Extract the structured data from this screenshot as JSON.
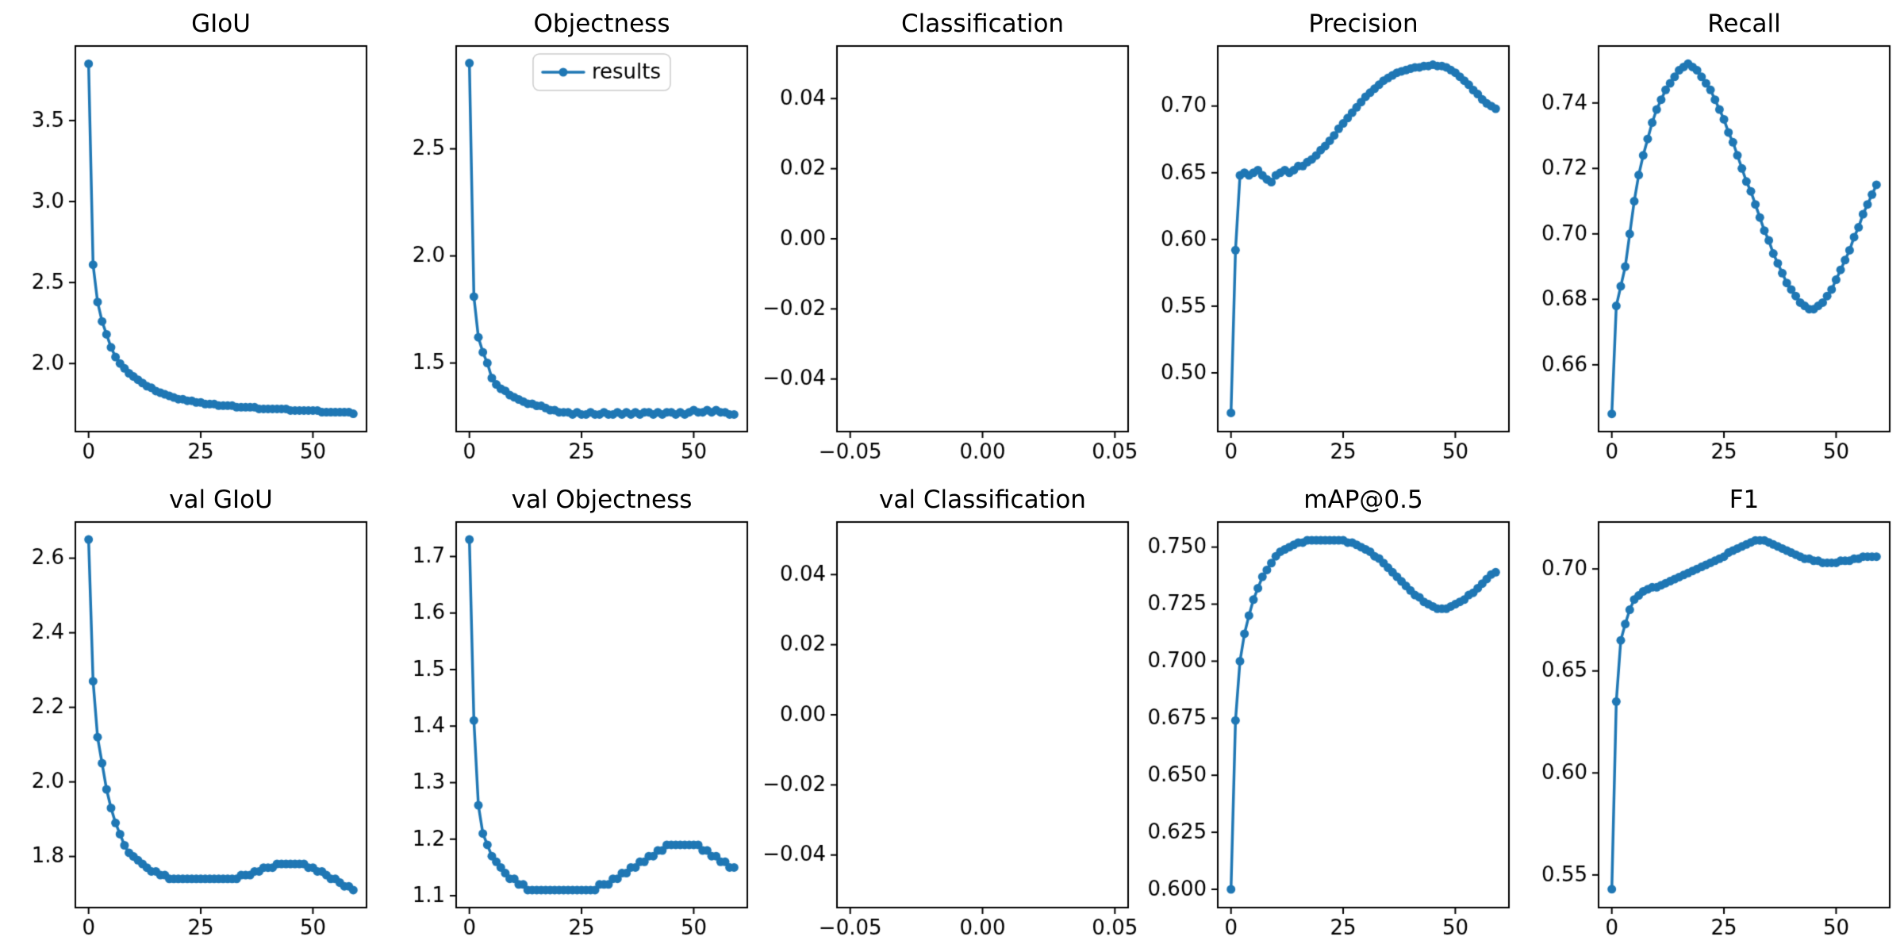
{
  "figure": {
    "background": "#ffffff",
    "accent_color": "#1f77b4",
    "axes_color": "#000000",
    "grid": false,
    "layout": "2 rows x 5 columns of subplots"
  },
  "chart_data": [
    {
      "id": "giou",
      "type": "line",
      "title": "GIoU",
      "xlim": [
        -2.95,
        61.95
      ],
      "ylim": [
        1.58,
        3.96
      ],
      "xticks": [
        0,
        25,
        50
      ],
      "xtick_labels": [
        "0",
        "25",
        "50"
      ],
      "yticks": [
        2.0,
        2.5,
        3.0,
        3.5
      ],
      "ytick_labels": [
        "2.0",
        "2.5",
        "3.0",
        "3.5"
      ],
      "x": [
        0,
        1,
        2,
        3,
        4,
        5,
        6,
        7,
        8,
        9,
        10,
        11,
        12,
        13,
        14,
        15,
        16,
        17,
        18,
        19,
        20,
        21,
        22,
        23,
        24,
        25,
        26,
        27,
        28,
        29,
        30,
        31,
        32,
        33,
        34,
        35,
        36,
        37,
        38,
        39,
        40,
        41,
        42,
        43,
        44,
        45,
        46,
        47,
        48,
        49,
        50,
        51,
        52,
        53,
        54,
        55,
        56,
        57,
        58,
        59
      ],
      "values": [
        3.85,
        2.61,
        2.38,
        2.26,
        2.18,
        2.1,
        2.04,
        2.0,
        1.97,
        1.94,
        1.92,
        1.9,
        1.88,
        1.86,
        1.85,
        1.83,
        1.82,
        1.81,
        1.8,
        1.79,
        1.78,
        1.78,
        1.77,
        1.77,
        1.76,
        1.76,
        1.75,
        1.75,
        1.75,
        1.74,
        1.74,
        1.74,
        1.74,
        1.73,
        1.73,
        1.73,
        1.73,
        1.73,
        1.72,
        1.72,
        1.72,
        1.72,
        1.72,
        1.72,
        1.72,
        1.71,
        1.71,
        1.71,
        1.71,
        1.71,
        1.71,
        1.71,
        1.7,
        1.7,
        1.7,
        1.7,
        1.7,
        1.7,
        1.7,
        1.69
      ]
    },
    {
      "id": "objectness",
      "type": "line",
      "title": "Objectness",
      "legend_entries": [
        "results"
      ],
      "legend_position": "upper center",
      "xlim": [
        -2.95,
        61.95
      ],
      "ylim": [
        1.18,
        2.98
      ],
      "xticks": [
        0,
        25,
        50
      ],
      "xtick_labels": [
        "0",
        "25",
        "50"
      ],
      "yticks": [
        1.5,
        2.0,
        2.5
      ],
      "ytick_labels": [
        "1.5",
        "2.0",
        "2.5"
      ],
      "x": [
        0,
        1,
        2,
        3,
        4,
        5,
        6,
        7,
        8,
        9,
        10,
        11,
        12,
        13,
        14,
        15,
        16,
        17,
        18,
        19,
        20,
        21,
        22,
        23,
        24,
        25,
        26,
        27,
        28,
        29,
        30,
        31,
        32,
        33,
        34,
        35,
        36,
        37,
        38,
        39,
        40,
        41,
        42,
        43,
        44,
        45,
        46,
        47,
        48,
        49,
        50,
        51,
        52,
        53,
        54,
        55,
        56,
        57,
        58,
        59
      ],
      "values": [
        2.9,
        1.81,
        1.62,
        1.55,
        1.5,
        1.43,
        1.4,
        1.38,
        1.37,
        1.35,
        1.34,
        1.33,
        1.32,
        1.31,
        1.31,
        1.3,
        1.3,
        1.29,
        1.28,
        1.28,
        1.27,
        1.27,
        1.27,
        1.26,
        1.27,
        1.26,
        1.26,
        1.27,
        1.26,
        1.26,
        1.27,
        1.26,
        1.26,
        1.27,
        1.26,
        1.27,
        1.26,
        1.27,
        1.26,
        1.27,
        1.27,
        1.26,
        1.27,
        1.26,
        1.27,
        1.27,
        1.26,
        1.27,
        1.26,
        1.27,
        1.28,
        1.27,
        1.27,
        1.28,
        1.27,
        1.28,
        1.27,
        1.27,
        1.26,
        1.26
      ]
    },
    {
      "id": "classification",
      "type": "line",
      "title": "Classification",
      "xlim": [
        -0.055,
        0.055
      ],
      "ylim": [
        -0.055,
        0.055
      ],
      "xticks": [
        -0.05,
        0.0,
        0.05
      ],
      "xtick_labels": [
        "−0.05",
        "0.00",
        "0.05"
      ],
      "yticks": [
        -0.04,
        -0.02,
        0.0,
        0.02,
        0.04
      ],
      "ytick_labels": [
        "−0.04",
        "−0.02",
        "0.00",
        "0.02",
        "0.04"
      ],
      "x": [],
      "values": []
    },
    {
      "id": "precision",
      "type": "line",
      "title": "Precision",
      "xlim": [
        -2.95,
        61.95
      ],
      "ylim": [
        0.456,
        0.745
      ],
      "xticks": [
        0,
        25,
        50
      ],
      "xtick_labels": [
        "0",
        "25",
        "50"
      ],
      "yticks": [
        0.5,
        0.55,
        0.6,
        0.65,
        0.7
      ],
      "ytick_labels": [
        "0.50",
        "0.55",
        "0.60",
        "0.65",
        "0.70"
      ],
      "x": [
        0,
        1,
        2,
        3,
        4,
        5,
        6,
        7,
        8,
        9,
        10,
        11,
        12,
        13,
        14,
        15,
        16,
        17,
        18,
        19,
        20,
        21,
        22,
        23,
        24,
        25,
        26,
        27,
        28,
        29,
        30,
        31,
        32,
        33,
        34,
        35,
        36,
        37,
        38,
        39,
        40,
        41,
        42,
        43,
        44,
        45,
        46,
        47,
        48,
        49,
        50,
        51,
        52,
        53,
        54,
        55,
        56,
        57,
        58,
        59
      ],
      "values": [
        0.47,
        0.592,
        0.648,
        0.65,
        0.648,
        0.65,
        0.652,
        0.648,
        0.645,
        0.643,
        0.648,
        0.65,
        0.652,
        0.65,
        0.652,
        0.655,
        0.655,
        0.658,
        0.66,
        0.663,
        0.667,
        0.67,
        0.674,
        0.678,
        0.683,
        0.687,
        0.691,
        0.695,
        0.699,
        0.703,
        0.707,
        0.71,
        0.713,
        0.716,
        0.719,
        0.721,
        0.723,
        0.725,
        0.726,
        0.727,
        0.728,
        0.729,
        0.729,
        0.73,
        0.73,
        0.731,
        0.73,
        0.73,
        0.729,
        0.727,
        0.725,
        0.722,
        0.719,
        0.716,
        0.712,
        0.709,
        0.705,
        0.702,
        0.7,
        0.698
      ]
    },
    {
      "id": "recall",
      "type": "line",
      "title": "Recall",
      "xlim": [
        -2.95,
        61.95
      ],
      "ylim": [
        0.6396,
        0.7574
      ],
      "xticks": [
        0,
        25,
        50
      ],
      "xtick_labels": [
        "0",
        "25",
        "50"
      ],
      "yticks": [
        0.66,
        0.68,
        0.7,
        0.72,
        0.74
      ],
      "ytick_labels": [
        "0.66",
        "0.68",
        "0.70",
        "0.72",
        "0.74"
      ],
      "x": [
        0,
        1,
        2,
        3,
        4,
        5,
        6,
        7,
        8,
        9,
        10,
        11,
        12,
        13,
        14,
        15,
        16,
        17,
        18,
        19,
        20,
        21,
        22,
        23,
        24,
        25,
        26,
        27,
        28,
        29,
        30,
        31,
        32,
        33,
        34,
        35,
        36,
        37,
        38,
        39,
        40,
        41,
        42,
        43,
        44,
        45,
        46,
        47,
        48,
        49,
        50,
        51,
        52,
        53,
        54,
        55,
        56,
        57,
        58,
        59
      ],
      "values": [
        0.645,
        0.678,
        0.684,
        0.69,
        0.7,
        0.71,
        0.718,
        0.724,
        0.729,
        0.734,
        0.738,
        0.741,
        0.744,
        0.746,
        0.748,
        0.75,
        0.751,
        0.752,
        0.751,
        0.75,
        0.748,
        0.746,
        0.744,
        0.741,
        0.738,
        0.735,
        0.731,
        0.728,
        0.724,
        0.72,
        0.716,
        0.713,
        0.709,
        0.705,
        0.701,
        0.698,
        0.694,
        0.691,
        0.688,
        0.685,
        0.683,
        0.681,
        0.679,
        0.678,
        0.677,
        0.677,
        0.678,
        0.679,
        0.681,
        0.683,
        0.686,
        0.689,
        0.692,
        0.695,
        0.699,
        0.702,
        0.706,
        0.709,
        0.712,
        0.715
      ]
    },
    {
      "id": "val-giou",
      "type": "line",
      "title": "val GIoU",
      "xlim": [
        -2.95,
        61.95
      ],
      "ylim": [
        1.663,
        2.697
      ],
      "xticks": [
        0,
        25,
        50
      ],
      "xtick_labels": [
        "0",
        "25",
        "50"
      ],
      "yticks": [
        1.8,
        2.0,
        2.2,
        2.4,
        2.6
      ],
      "ytick_labels": [
        "1.8",
        "2.0",
        "2.2",
        "2.4",
        "2.6"
      ],
      "x": [
        0,
        1,
        2,
        3,
        4,
        5,
        6,
        7,
        8,
        9,
        10,
        11,
        12,
        13,
        14,
        15,
        16,
        17,
        18,
        19,
        20,
        21,
        22,
        23,
        24,
        25,
        26,
        27,
        28,
        29,
        30,
        31,
        32,
        33,
        34,
        35,
        36,
        37,
        38,
        39,
        40,
        41,
        42,
        43,
        44,
        45,
        46,
        47,
        48,
        49,
        50,
        51,
        52,
        53,
        54,
        55,
        56,
        57,
        58,
        59
      ],
      "values": [
        2.65,
        2.27,
        2.12,
        2.05,
        1.98,
        1.93,
        1.89,
        1.86,
        1.83,
        1.81,
        1.8,
        1.79,
        1.78,
        1.77,
        1.76,
        1.76,
        1.75,
        1.75,
        1.74,
        1.74,
        1.74,
        1.74,
        1.74,
        1.74,
        1.74,
        1.74,
        1.74,
        1.74,
        1.74,
        1.74,
        1.74,
        1.74,
        1.74,
        1.74,
        1.75,
        1.75,
        1.75,
        1.76,
        1.76,
        1.77,
        1.77,
        1.77,
        1.78,
        1.78,
        1.78,
        1.78,
        1.78,
        1.78,
        1.78,
        1.77,
        1.77,
        1.76,
        1.76,
        1.75,
        1.74,
        1.74,
        1.73,
        1.72,
        1.72,
        1.71
      ]
    },
    {
      "id": "val-objectness",
      "type": "line",
      "title": "val Objectness",
      "xlim": [
        -2.95,
        61.95
      ],
      "ylim": [
        1.079,
        1.761
      ],
      "xticks": [
        0,
        25,
        50
      ],
      "xtick_labels": [
        "0",
        "25",
        "50"
      ],
      "yticks": [
        1.1,
        1.2,
        1.3,
        1.4,
        1.5,
        1.6,
        1.7
      ],
      "ytick_labels": [
        "1.1",
        "1.2",
        "1.3",
        "1.4",
        "1.5",
        "1.6",
        "1.7"
      ],
      "x": [
        0,
        1,
        2,
        3,
        4,
        5,
        6,
        7,
        8,
        9,
        10,
        11,
        12,
        13,
        14,
        15,
        16,
        17,
        18,
        19,
        20,
        21,
        22,
        23,
        24,
        25,
        26,
        27,
        28,
        29,
        30,
        31,
        32,
        33,
        34,
        35,
        36,
        37,
        38,
        39,
        40,
        41,
        42,
        43,
        44,
        45,
        46,
        47,
        48,
        49,
        50,
        51,
        52,
        53,
        54,
        55,
        56,
        57,
        58,
        59
      ],
      "values": [
        1.73,
        1.41,
        1.26,
        1.21,
        1.19,
        1.17,
        1.16,
        1.15,
        1.14,
        1.13,
        1.13,
        1.12,
        1.12,
        1.11,
        1.11,
        1.11,
        1.11,
        1.11,
        1.11,
        1.11,
        1.11,
        1.11,
        1.11,
        1.11,
        1.11,
        1.11,
        1.11,
        1.11,
        1.11,
        1.12,
        1.12,
        1.12,
        1.13,
        1.13,
        1.14,
        1.14,
        1.15,
        1.15,
        1.16,
        1.16,
        1.17,
        1.17,
        1.18,
        1.18,
        1.19,
        1.19,
        1.19,
        1.19,
        1.19,
        1.19,
        1.19,
        1.19,
        1.18,
        1.18,
        1.17,
        1.17,
        1.16,
        1.16,
        1.15,
        1.15
      ]
    },
    {
      "id": "val-classification",
      "type": "line",
      "title": "val Classification",
      "xlim": [
        -0.055,
        0.055
      ],
      "ylim": [
        -0.055,
        0.055
      ],
      "xticks": [
        -0.05,
        0.0,
        0.05
      ],
      "xtick_labels": [
        "−0.05",
        "0.00",
        "0.05"
      ],
      "yticks": [
        -0.04,
        -0.02,
        0.0,
        0.02,
        0.04
      ],
      "ytick_labels": [
        "−0.04",
        "−0.02",
        "0.00",
        "0.02",
        "0.04"
      ],
      "x": [],
      "values": []
    },
    {
      "id": "map05",
      "type": "line",
      "title": "mAP@0.5",
      "xlim": [
        -2.95,
        61.95
      ],
      "ylim": [
        0.592,
        0.761
      ],
      "xticks": [
        0,
        25,
        50
      ],
      "xtick_labels": [
        "0",
        "25",
        "50"
      ],
      "yticks": [
        0.6,
        0.625,
        0.65,
        0.675,
        0.7,
        0.725,
        0.75
      ],
      "ytick_labels": [
        "0.600",
        "0.625",
        "0.650",
        "0.675",
        "0.700",
        "0.725",
        "0.750"
      ],
      "x": [
        0,
        1,
        2,
        3,
        4,
        5,
        6,
        7,
        8,
        9,
        10,
        11,
        12,
        13,
        14,
        15,
        16,
        17,
        18,
        19,
        20,
        21,
        22,
        23,
        24,
        25,
        26,
        27,
        28,
        29,
        30,
        31,
        32,
        33,
        34,
        35,
        36,
        37,
        38,
        39,
        40,
        41,
        42,
        43,
        44,
        45,
        46,
        47,
        48,
        49,
        50,
        51,
        52,
        53,
        54,
        55,
        56,
        57,
        58,
        59
      ],
      "values": [
        0.6,
        0.674,
        0.7,
        0.712,
        0.72,
        0.727,
        0.732,
        0.737,
        0.74,
        0.743,
        0.746,
        0.748,
        0.749,
        0.75,
        0.751,
        0.752,
        0.752,
        0.753,
        0.753,
        0.753,
        0.753,
        0.753,
        0.753,
        0.753,
        0.753,
        0.753,
        0.752,
        0.752,
        0.751,
        0.75,
        0.749,
        0.748,
        0.746,
        0.745,
        0.743,
        0.741,
        0.739,
        0.737,
        0.735,
        0.733,
        0.731,
        0.729,
        0.728,
        0.726,
        0.725,
        0.724,
        0.723,
        0.723,
        0.723,
        0.724,
        0.725,
        0.726,
        0.727,
        0.729,
        0.73,
        0.732,
        0.734,
        0.736,
        0.738,
        0.739
      ]
    },
    {
      "id": "f1",
      "type": "line",
      "title": "F1",
      "xlim": [
        -2.95,
        61.95
      ],
      "ylim": [
        0.534,
        0.723
      ],
      "xticks": [
        0,
        25,
        50
      ],
      "xtick_labels": [
        "0",
        "25",
        "50"
      ],
      "yticks": [
        0.55,
        0.6,
        0.65,
        0.7
      ],
      "ytick_labels": [
        "0.55",
        "0.60",
        "0.65",
        "0.70"
      ],
      "x": [
        0,
        1,
        2,
        3,
        4,
        5,
        6,
        7,
        8,
        9,
        10,
        11,
        12,
        13,
        14,
        15,
        16,
        17,
        18,
        19,
        20,
        21,
        22,
        23,
        24,
        25,
        26,
        27,
        28,
        29,
        30,
        31,
        32,
        33,
        34,
        35,
        36,
        37,
        38,
        39,
        40,
        41,
        42,
        43,
        44,
        45,
        46,
        47,
        48,
        49,
        50,
        51,
        52,
        53,
        54,
        55,
        56,
        57,
        58,
        59
      ],
      "values": [
        0.543,
        0.635,
        0.665,
        0.673,
        0.68,
        0.685,
        0.687,
        0.689,
        0.69,
        0.691,
        0.691,
        0.692,
        0.693,
        0.694,
        0.695,
        0.696,
        0.697,
        0.698,
        0.699,
        0.7,
        0.701,
        0.702,
        0.703,
        0.704,
        0.705,
        0.706,
        0.708,
        0.709,
        0.71,
        0.711,
        0.712,
        0.713,
        0.714,
        0.714,
        0.714,
        0.713,
        0.712,
        0.711,
        0.71,
        0.709,
        0.708,
        0.707,
        0.706,
        0.705,
        0.705,
        0.704,
        0.704,
        0.703,
        0.703,
        0.703,
        0.703,
        0.704,
        0.704,
        0.704,
        0.705,
        0.705,
        0.706,
        0.706,
        0.706,
        0.706
      ]
    }
  ]
}
